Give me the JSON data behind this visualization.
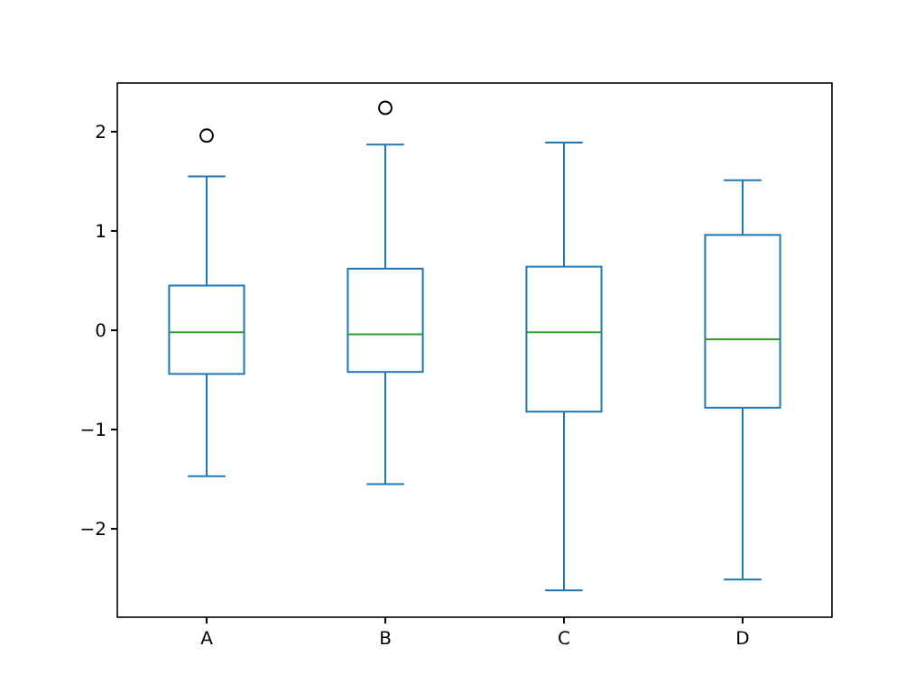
{
  "chart_data": {
    "type": "box",
    "categories": [
      "A",
      "B",
      "C",
      "D"
    ],
    "color": "#1f77b4",
    "boxes": [
      {
        "low": -1.47,
        "q1": -0.44,
        "median": -0.02,
        "q3": 0.45,
        "high": 1.55,
        "outliers": [
          1.96
        ]
      },
      {
        "low": -1.55,
        "q1": -0.42,
        "median": -0.04,
        "q3": 0.62,
        "high": 1.87,
        "outliers": [
          2.24
        ]
      },
      {
        "low": -2.62,
        "q1": -0.82,
        "median": -0.02,
        "q3": 0.64,
        "high": 1.89
      },
      {
        "low": -2.51,
        "q1": -0.78,
        "median": -0.09,
        "q3": 0.96,
        "high": 1.51
      }
    ],
    "ylim": [
      -2.89,
      2.49
    ],
    "yticks": [
      -2,
      -1,
      0,
      1,
      2
    ],
    "grid": false
  }
}
